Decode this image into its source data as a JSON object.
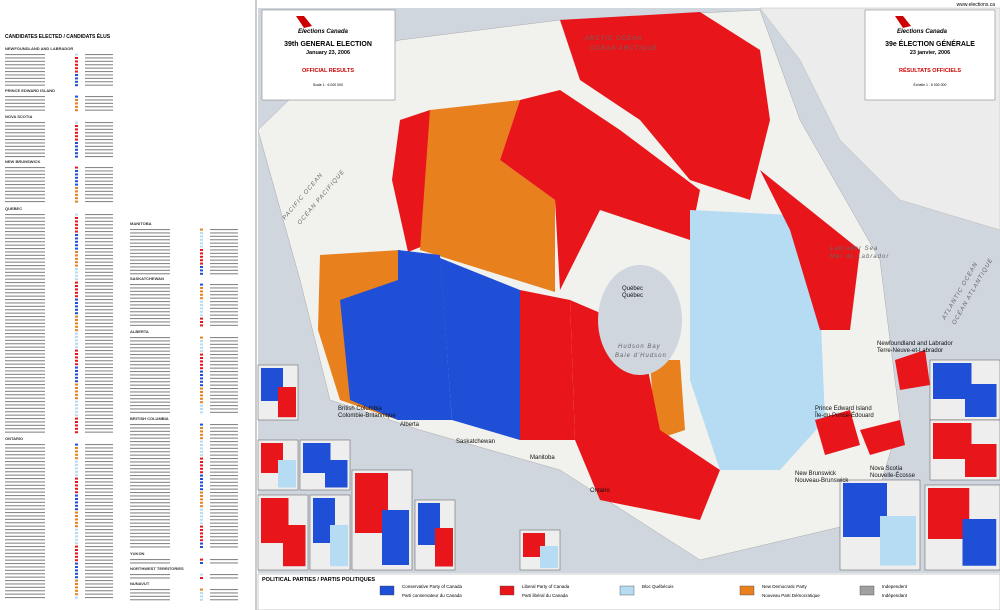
{
  "header": {
    "url": "www.elections.ca"
  },
  "title_en": {
    "agency": "Elections Canada",
    "title": "39th GENERAL ELECTION",
    "date": "January 23, 2006",
    "subtitle": "OFFICIAL RESULTS",
    "scale": "Scale  1 : 6 000 000"
  },
  "title_fr": {
    "agency": "Elections Canada",
    "title": "39e ÉLECTION GÉNÉRALE",
    "date": "23 janvier, 2006",
    "subtitle": "RÉSULTATS OFFICIELS",
    "scale": "Échelle  1 : 6 000 000"
  },
  "candidates": {
    "title": "CANDIDATES ELECTED / CANDIDATS ÉLUS",
    "sections": [
      "NEWFOUNDLAND AND LABRADOR",
      "PRINCE EDWARD ISLAND",
      "NOVA SCOTIA",
      "NEW BRUNSWICK",
      "QUEBEC",
      "ONTARIO",
      "MANITOBA",
      "SASKATCHEWAN",
      "ALBERTA",
      "BRITISH COLUMBIA",
      "YUKON",
      "NORTHWEST TERRITORIES",
      "NUNAVUT"
    ]
  },
  "map": {
    "oceans": [
      "ARCTIC OCEAN",
      "OCÉAN ARCTIQUE",
      "PACIFIC OCEAN",
      "OCÉAN PACIFIQUE",
      "ATLANTIC OCEAN",
      "OCÉAN ATLANTIQUE",
      "Hudson Bay",
      "Baie d'Hudson",
      "Labrador Sea",
      "Mer du Labrador"
    ],
    "regions": [
      "Québec",
      "Québec",
      "Newfoundland and Labrador",
      "Terre-Neuve-et-Labrador",
      "Prince Edward Island",
      "Île-du-Prince-Édouard",
      "Nova Scotia",
      "Nouvelle-Écosse",
      "New Brunswick",
      "Nouveau-Brunswick",
      "Ontario",
      "Manitoba",
      "Saskatchewan",
      "Alberta",
      "British Columbia",
      "Colombie-Britannique"
    ]
  },
  "legend": {
    "title": "POLITICAL PARTIES / PARTIS POLITIQUES",
    "parties": [
      {
        "en": "Conservative Party of Canada",
        "fr": "Parti conservateur du Canada",
        "color": "#1f4fd6"
      },
      {
        "en": "Liberal Party of Canada",
        "fr": "Parti libéral du Canada",
        "color": "#e8161b"
      },
      {
        "en": "Bloc Québécois",
        "color": "#b5dcf2"
      },
      {
        "en": "New Democratic Party",
        "fr": "Nouveau Parti Démocratique",
        "color": "#e8801e"
      },
      {
        "en": "Independent",
        "fr": "Indépendant",
        "color": "#a0a0a0"
      }
    ]
  }
}
